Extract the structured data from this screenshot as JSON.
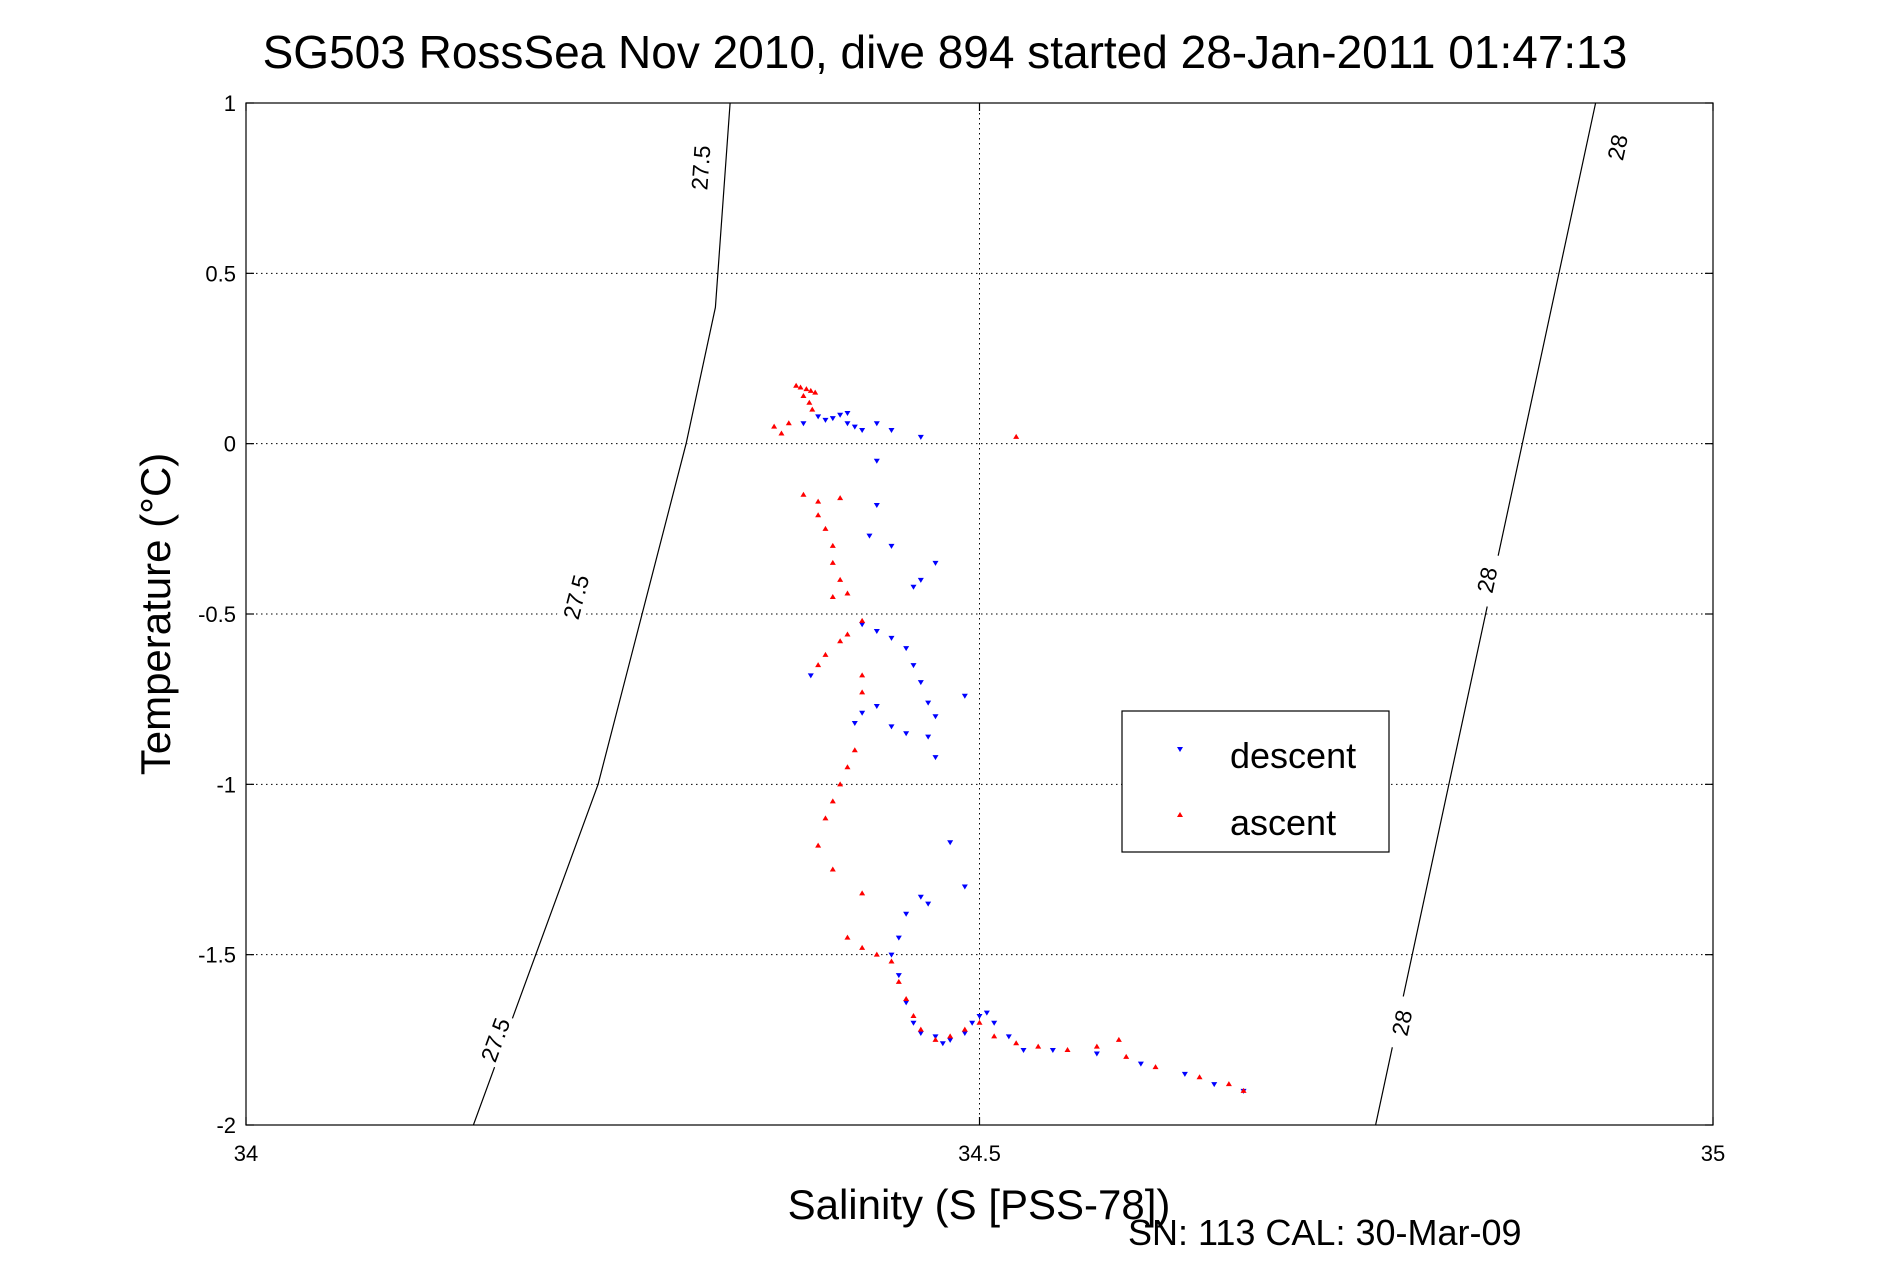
{
  "chart_data": {
    "type": "scatter",
    "title": "SG503 RossSea Nov 2010, dive 894 started 28-Jan-2011 01:47:13",
    "xlabel": "Salinity (S [PSS-78])",
    "ylabel": "Temperature (°C)",
    "xlim": [
      34,
      35
    ],
    "ylim": [
      -2,
      1
    ],
    "xticks": [
      "34",
      "34.5",
      "35"
    ],
    "yticks": [
      "1",
      "0.5",
      "0",
      "-0.5",
      "-1",
      "-1.5",
      "-2"
    ],
    "grid": true,
    "legend_position": "inside-right",
    "footnote": "SN: 113  CAL: 30-Mar-09",
    "isopycnals": [
      {
        "label": "27.5",
        "points": [
          [
            34.155,
            -2.0
          ],
          [
            34.24,
            -1.0
          ],
          [
            34.3,
            0.0
          ],
          [
            34.32,
            0.4
          ],
          [
            34.33,
            1.0
          ]
        ],
        "label_positions": [
          [
            34.17,
            -1.75
          ],
          [
            34.225,
            -0.45
          ],
          [
            34.31,
            0.81
          ]
        ]
      },
      {
        "label": "28",
        "points": [
          [
            34.77,
            -2.0
          ],
          [
            34.82,
            -1.0
          ],
          [
            34.87,
            0.0
          ],
          [
            34.89,
            0.4
          ],
          [
            34.92,
            1.0
          ]
        ],
        "label_positions": [
          [
            34.788,
            -1.7
          ],
          [
            34.846,
            -0.4
          ],
          [
            34.935,
            0.87
          ]
        ]
      }
    ],
    "series": [
      {
        "name": "descent",
        "color": "#0000ff",
        "marker": "triangle-down",
        "points": [
          [
            34.39,
            0.08
          ],
          [
            34.395,
            0.07
          ],
          [
            34.4,
            0.075
          ],
          [
            34.405,
            0.085
          ],
          [
            34.41,
            0.06
          ],
          [
            34.415,
            0.05
          ],
          [
            34.42,
            0.04
          ],
          [
            34.41,
            0.09
          ],
          [
            34.43,
            0.06
          ],
          [
            34.44,
            0.04
          ],
          [
            34.46,
            0.02
          ],
          [
            34.38,
            0.06
          ],
          [
            34.43,
            -0.05
          ],
          [
            34.43,
            -0.18
          ],
          [
            34.425,
            -0.27
          ],
          [
            34.44,
            -0.3
          ],
          [
            34.47,
            -0.35
          ],
          [
            34.46,
            -0.4
          ],
          [
            34.455,
            -0.42
          ],
          [
            34.42,
            -0.53
          ],
          [
            34.43,
            -0.55
          ],
          [
            34.44,
            -0.57
          ],
          [
            34.45,
            -0.6
          ],
          [
            34.455,
            -0.65
          ],
          [
            34.46,
            -0.7
          ],
          [
            34.465,
            -0.76
          ],
          [
            34.47,
            -0.8
          ],
          [
            34.49,
            -0.74
          ],
          [
            34.43,
            -0.77
          ],
          [
            34.42,
            -0.79
          ],
          [
            34.415,
            -0.82
          ],
          [
            34.44,
            -0.83
          ],
          [
            34.45,
            -0.85
          ],
          [
            34.465,
            -0.86
          ],
          [
            34.47,
            -0.92
          ],
          [
            34.385,
            -0.68
          ],
          [
            34.48,
            -1.17
          ],
          [
            34.49,
            -1.3
          ],
          [
            34.46,
            -1.33
          ],
          [
            34.465,
            -1.35
          ],
          [
            34.45,
            -1.38
          ],
          [
            34.445,
            -1.45
          ],
          [
            34.44,
            -1.5
          ],
          [
            34.445,
            -1.56
          ],
          [
            34.45,
            -1.64
          ],
          [
            34.455,
            -1.7
          ],
          [
            34.46,
            -1.73
          ],
          [
            34.47,
            -1.74
          ],
          [
            34.475,
            -1.76
          ],
          [
            34.48,
            -1.75
          ],
          [
            34.49,
            -1.73
          ],
          [
            34.495,
            -1.7
          ],
          [
            34.5,
            -1.68
          ],
          [
            34.505,
            -1.67
          ],
          [
            34.51,
            -1.7
          ],
          [
            34.52,
            -1.74
          ],
          [
            34.53,
            -1.78
          ],
          [
            34.55,
            -1.78
          ],
          [
            34.58,
            -1.79
          ],
          [
            34.61,
            -1.82
          ],
          [
            34.64,
            -1.85
          ],
          [
            34.66,
            -1.88
          ],
          [
            34.68,
            -1.9
          ]
        ]
      },
      {
        "name": "ascent",
        "color": "#ff0000",
        "marker": "triangle-up",
        "points": [
          [
            34.375,
            0.17
          ],
          [
            34.378,
            0.165
          ],
          [
            34.382,
            0.16
          ],
          [
            34.385,
            0.155
          ],
          [
            34.388,
            0.15
          ],
          [
            34.384,
            0.12
          ],
          [
            34.386,
            0.1
          ],
          [
            34.38,
            0.14
          ],
          [
            34.37,
            0.06
          ],
          [
            34.365,
            0.03
          ],
          [
            34.36,
            0.05
          ],
          [
            34.525,
            0.02
          ],
          [
            34.38,
            -0.15
          ],
          [
            34.39,
            -0.17
          ],
          [
            34.405,
            -0.16
          ],
          [
            34.39,
            -0.21
          ],
          [
            34.395,
            -0.25
          ],
          [
            34.4,
            -0.3
          ],
          [
            34.4,
            -0.35
          ],
          [
            34.405,
            -0.4
          ],
          [
            34.4,
            -0.45
          ],
          [
            34.41,
            -0.44
          ],
          [
            34.42,
            -0.52
          ],
          [
            34.41,
            -0.56
          ],
          [
            34.405,
            -0.58
          ],
          [
            34.395,
            -0.62
          ],
          [
            34.39,
            -0.65
          ],
          [
            34.42,
            -0.68
          ],
          [
            34.42,
            -0.73
          ],
          [
            34.415,
            -0.9
          ],
          [
            34.41,
            -0.95
          ],
          [
            34.405,
            -1.0
          ],
          [
            34.4,
            -1.05
          ],
          [
            34.395,
            -1.1
          ],
          [
            34.39,
            -1.18
          ],
          [
            34.4,
            -1.25
          ],
          [
            34.42,
            -1.32
          ],
          [
            34.41,
            -1.45
          ],
          [
            34.42,
            -1.48
          ],
          [
            34.43,
            -1.5
          ],
          [
            34.44,
            -1.52
          ],
          [
            34.445,
            -1.58
          ],
          [
            34.45,
            -1.63
          ],
          [
            34.455,
            -1.68
          ],
          [
            34.46,
            -1.72
          ],
          [
            34.47,
            -1.75
          ],
          [
            34.48,
            -1.74
          ],
          [
            34.49,
            -1.72
          ],
          [
            34.5,
            -1.7
          ],
          [
            34.51,
            -1.74
          ],
          [
            34.525,
            -1.76
          ],
          [
            34.54,
            -1.77
          ],
          [
            34.56,
            -1.78
          ],
          [
            34.58,
            -1.77
          ],
          [
            34.595,
            -1.75
          ],
          [
            34.6,
            -1.8
          ],
          [
            34.62,
            -1.83
          ],
          [
            34.65,
            -1.86
          ],
          [
            34.67,
            -1.88
          ],
          [
            34.68,
            -1.9
          ]
        ]
      }
    ]
  }
}
